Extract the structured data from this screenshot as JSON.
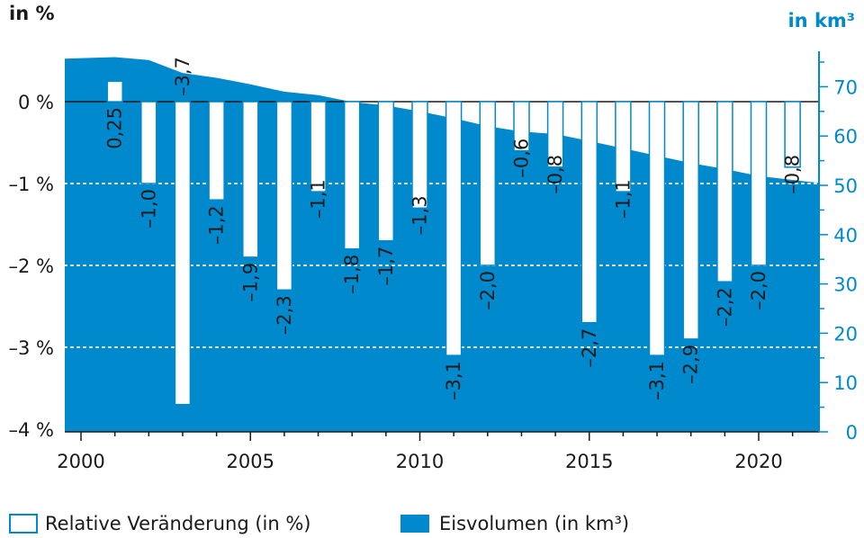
{
  "chart_data": {
    "type": "bar+area",
    "x": [
      2000,
      2001,
      2002,
      2003,
      2004,
      2005,
      2006,
      2007,
      2008,
      2009,
      2010,
      2011,
      2012,
      2013,
      2014,
      2015,
      2016,
      2017,
      2018,
      2019,
      2020,
      2021
    ],
    "x_ticks": [
      "2000",
      "2005",
      "2010",
      "2015",
      "2020"
    ],
    "left_axis": {
      "unit": "in %",
      "ylim": [
        -4,
        0.6
      ],
      "ticks": [
        0,
        -1,
        -2,
        -3,
        -4
      ],
      "tick_labels": [
        "0 %",
        "–1 %",
        "–2 %",
        "–3 %",
        "–4 %"
      ]
    },
    "right_axis": {
      "unit": "in km³",
      "ylim": [
        0,
        76
      ],
      "ticks": [
        0,
        10,
        20,
        30,
        40,
        50,
        60,
        70
      ],
      "tick_labels": [
        "0",
        "10",
        "20",
        "30",
        "40",
        "50",
        "60",
        "70"
      ]
    },
    "series": [
      {
        "name": "Relative Veränderung (in %)",
        "type": "bar",
        "axis": "left",
        "x": [
          2001,
          2002,
          2003,
          2004,
          2005,
          2006,
          2007,
          2008,
          2009,
          2010,
          2011,
          2012,
          2013,
          2014,
          2015,
          2016,
          2017,
          2018,
          2019,
          2020,
          2021
        ],
        "values": [
          0.25,
          -1.0,
          -3.7,
          -1.2,
          -1.9,
          -2.3,
          -1.1,
          -1.8,
          -1.7,
          -1.3,
          -3.1,
          -2.0,
          -0.6,
          -0.8,
          -2.7,
          -1.1,
          -3.1,
          -2.9,
          -2.2,
          -2.0,
          -0.8
        ],
        "labels": [
          "0,25",
          "–1,0",
          "–3,7",
          "–1,2",
          "–1,9",
          "–2,3",
          "–1,1",
          "–1,8",
          "–1,7",
          "–1,3",
          "–3,1",
          "–2,0",
          "–0,6",
          "–0,8",
          "–2,7",
          "–1,1",
          "–3,1",
          "–2,9",
          "–2,2",
          "–2,0",
          "–0,8"
        ]
      },
      {
        "name": "Eisvolumen (in km³)",
        "type": "area",
        "axis": "right",
        "x": [
          1999.1,
          2000,
          2001,
          2002,
          2003,
          2004,
          2005,
          2006,
          2007,
          2008,
          2009,
          2010,
          2011,
          2012,
          2013,
          2014,
          2015,
          2016,
          2017,
          2018,
          2019,
          2020,
          2021,
          2021.8
        ],
        "values": [
          75.7,
          75.8,
          76.0,
          75.4,
          72.8,
          71.8,
          70.5,
          69.0,
          68.3,
          66.9,
          66.2,
          65.0,
          63.6,
          62.0,
          60.9,
          60.4,
          59.0,
          57.5,
          56.0,
          54.5,
          53.3,
          51.9,
          51.1,
          50.5
        ]
      }
    ],
    "colors": {
      "area": "#0089cc",
      "bar_fill": "#ffffff",
      "bar_stroke": "#0089cc",
      "zero_line": "#1a1a1a",
      "grid": "#ffffff"
    },
    "grid": "dotted horizontal lines at -1, -2, -3",
    "legend_position": "bottom"
  }
}
